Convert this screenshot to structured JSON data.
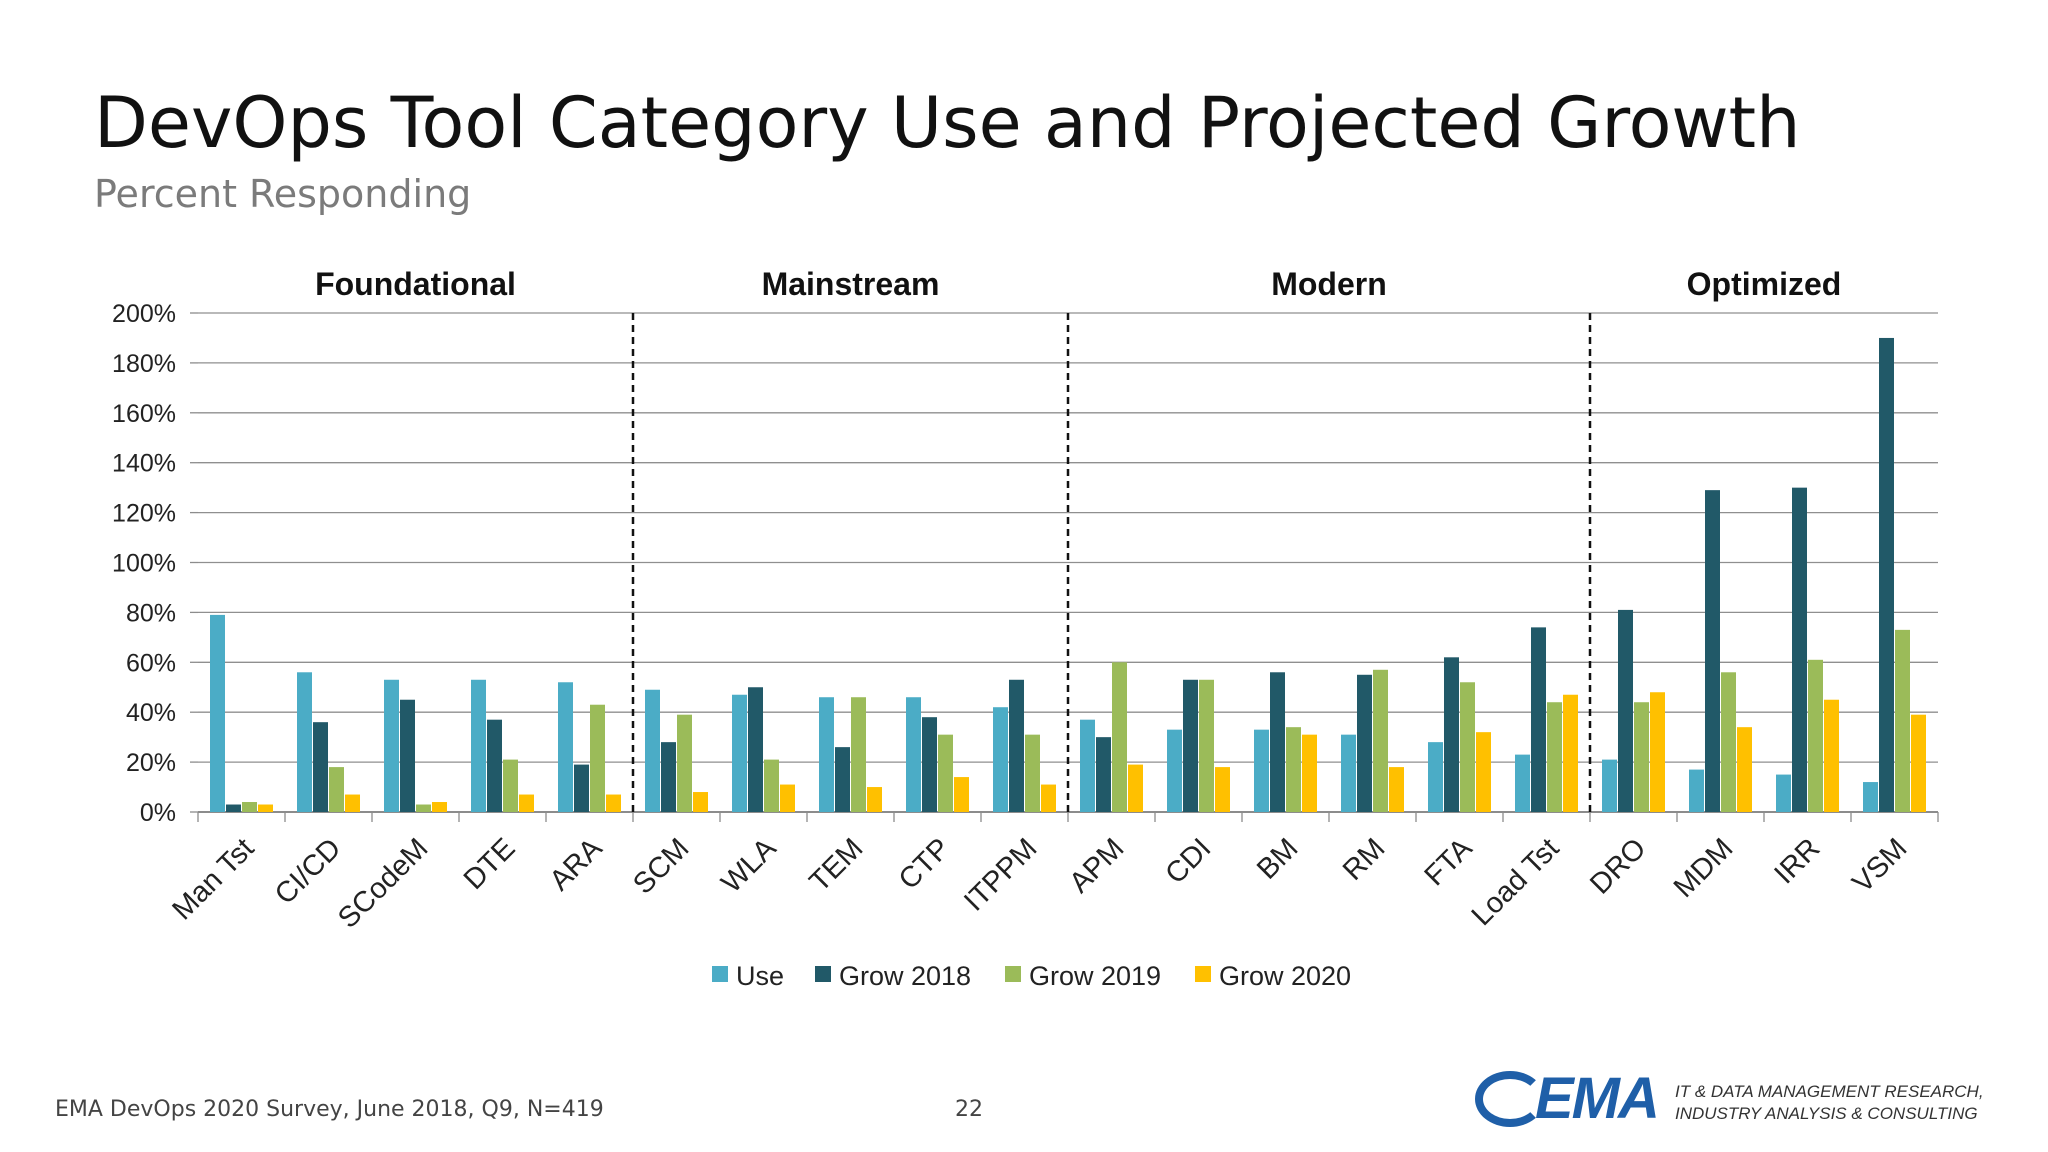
{
  "slide": {
    "title": "DevOps Tool Category Use and Projected Growth",
    "subtitle": "Percent Responding",
    "source": "EMA DevOps 2020 Survey, June 2018, Q9, N=419",
    "page_number": "22",
    "logo_text": "EMA",
    "tagline_line1": "IT & DATA MANAGEMENT RESEARCH,",
    "tagline_line2": "INDUSTRY ANALYSIS & CONSULTING"
  },
  "chart_data": {
    "type": "bar",
    "categories": [
      "Man Tst",
      "CI/CD",
      "SCodeM",
      "DTE",
      "ARA",
      "SCM",
      "WLA",
      "TEM",
      "CTP",
      "ITPPM",
      "APM",
      "CDI",
      "BM",
      "RM",
      "FTA",
      "Load Tst",
      "DRO",
      "MDM",
      "IRR",
      "VSM"
    ],
    "series": [
      {
        "name": "Use",
        "color": "#4bacc6",
        "values": [
          79,
          56,
          53,
          53,
          52,
          49,
          47,
          46,
          46,
          42,
          37,
          33,
          33,
          31,
          28,
          23,
          21,
          17,
          15,
          12
        ]
      },
      {
        "name": "Grow 2018",
        "color": "#215968",
        "values": [
          3,
          36,
          45,
          37,
          19,
          28,
          50,
          26,
          38,
          53,
          30,
          53,
          56,
          55,
          62,
          74,
          81,
          129,
          130,
          190
        ]
      },
      {
        "name": "Grow 2019",
        "color": "#9bbb59",
        "values": [
          4,
          18,
          3,
          21,
          43,
          39,
          21,
          46,
          31,
          31,
          60,
          53,
          34,
          57,
          52,
          44,
          44,
          56,
          61,
          73
        ]
      },
      {
        "name": "Grow 2020",
        "color": "#ffc000",
        "values": [
          3,
          7,
          4,
          7,
          7,
          8,
          11,
          10,
          14,
          11,
          19,
          18,
          31,
          18,
          32,
          47,
          48,
          34,
          45,
          39
        ]
      }
    ],
    "groups": [
      {
        "label": "Foundational",
        "start": 0,
        "end": 4
      },
      {
        "label": "Mainstream",
        "start": 5,
        "end": 9
      },
      {
        "label": "Modern",
        "start": 10,
        "end": 15
      },
      {
        "label": "Optimized",
        "start": 16,
        "end": 19
      }
    ],
    "ylim": [
      0,
      200
    ],
    "ytick_step": 20,
    "ytick_suffix": "%",
    "grid": true,
    "legend_position": "bottom"
  }
}
